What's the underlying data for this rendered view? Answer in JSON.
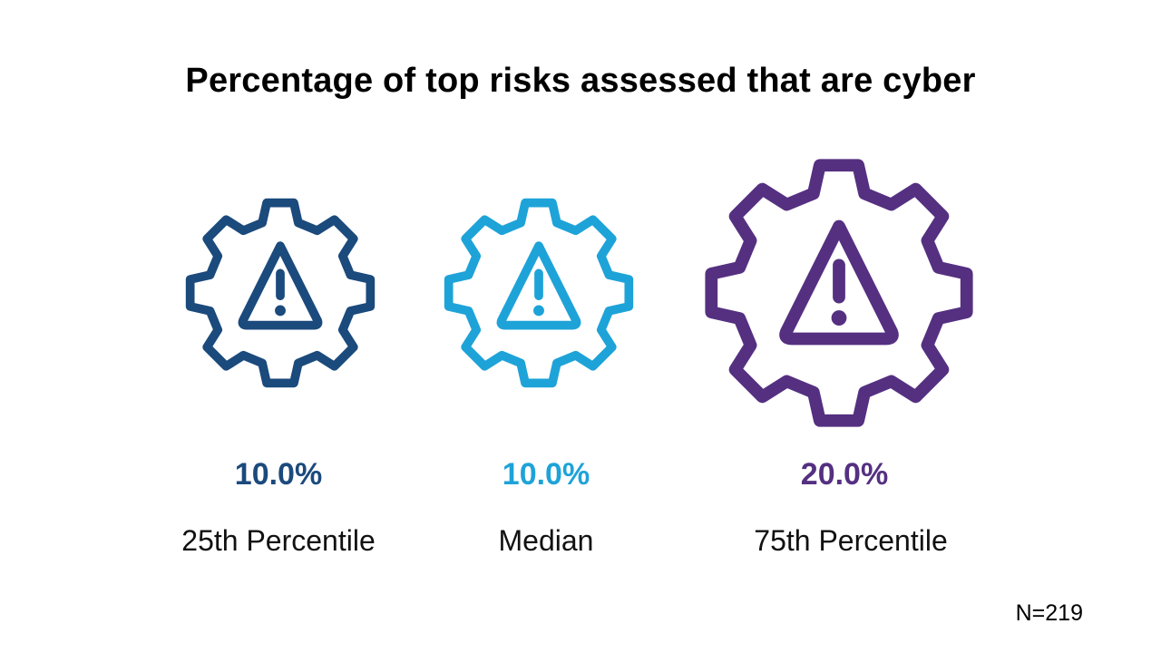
{
  "title": "Percentage of top risks assessed that are cyber",
  "stats": [
    {
      "value": "10.0%",
      "label": "25th Percentile",
      "icon": "warning-gear-icon",
      "color": "#1b4a7c"
    },
    {
      "value": "10.0%",
      "label": "Median",
      "icon": "warning-gear-icon",
      "color": "#1ea3d8"
    },
    {
      "value": "20.0%",
      "label": "75th Percentile",
      "icon": "warning-gear-icon",
      "color": "#553081"
    }
  ],
  "footnote": "N=219"
}
